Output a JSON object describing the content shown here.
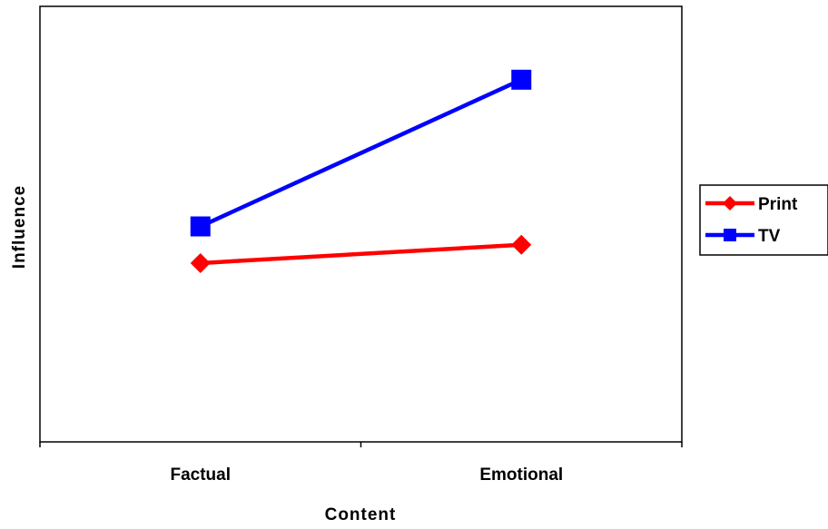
{
  "chart_data": {
    "type": "line",
    "categories": [
      "Factual",
      "Emotional"
    ],
    "series": [
      {
        "name": "Print",
        "values": [
          1.95,
          2.15
        ],
        "color": "#FF0000",
        "marker": "diamond"
      },
      {
        "name": "TV",
        "values": [
          2.35,
          3.95
        ],
        "color": "#0000FF",
        "marker": "square"
      }
    ],
    "title": "",
    "xlabel": "Content",
    "ylabel": "Influence",
    "ylim": [
      0,
      4.75
    ],
    "grid": false,
    "legend_position": "right"
  }
}
